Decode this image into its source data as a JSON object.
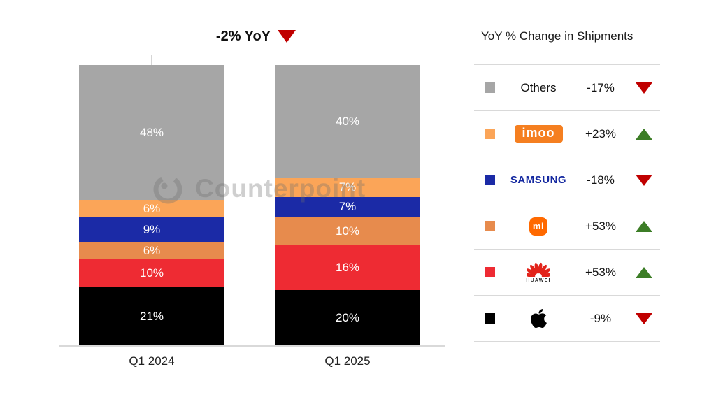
{
  "title": {
    "label": "-2% YoY",
    "direction": "down"
  },
  "watermark": {
    "label": "Counterpoint"
  },
  "chart_data": {
    "type": "bar",
    "stacked": true,
    "title": "-2% YoY",
    "categories": [
      "Q1 2024",
      "Q1 2025"
    ],
    "series": [
      {
        "name": "Others",
        "color": "#A6A6A6",
        "values": [
          48,
          40
        ]
      },
      {
        "name": "imoo",
        "color": "#FBA558",
        "values": [
          6,
          7
        ]
      },
      {
        "name": "Samsung",
        "color": "#1B2AA6",
        "values": [
          9,
          7
        ]
      },
      {
        "name": "Xiaomi",
        "color": "#E78B4D",
        "values": [
          6,
          10
        ]
      },
      {
        "name": "Huawei",
        "color": "#EE2B33",
        "values": [
          10,
          16
        ]
      },
      {
        "name": "Apple",
        "color": "#000000",
        "values": [
          21,
          20
        ]
      }
    ],
    "value_suffix": "%",
    "ylim": [
      0,
      100
    ],
    "legend_position": "right"
  },
  "legend": {
    "title": "YoY % Change in Shipments",
    "colors": {
      "up": "#3C7D26",
      "down": "#C00000"
    },
    "rows": [
      {
        "brand": "Others",
        "swatch": "#A6A6A6",
        "value": "-17%",
        "direction": "down"
      },
      {
        "brand": "imoo",
        "swatch": "#FBA558",
        "value": "+23%",
        "direction": "up"
      },
      {
        "brand": "SAMSUNG",
        "swatch": "#1B2AA6",
        "value": "-18%",
        "direction": "down"
      },
      {
        "brand": "Mi",
        "logo_text": "mi",
        "swatch": "#E78B4D",
        "value": "+53%",
        "direction": "up"
      },
      {
        "brand": "HUAWEI",
        "swatch": "#EE2B33",
        "value": "+53%",
        "direction": "up"
      },
      {
        "brand": "Apple",
        "swatch": "#000000",
        "value": "-9%",
        "direction": "down"
      }
    ]
  }
}
